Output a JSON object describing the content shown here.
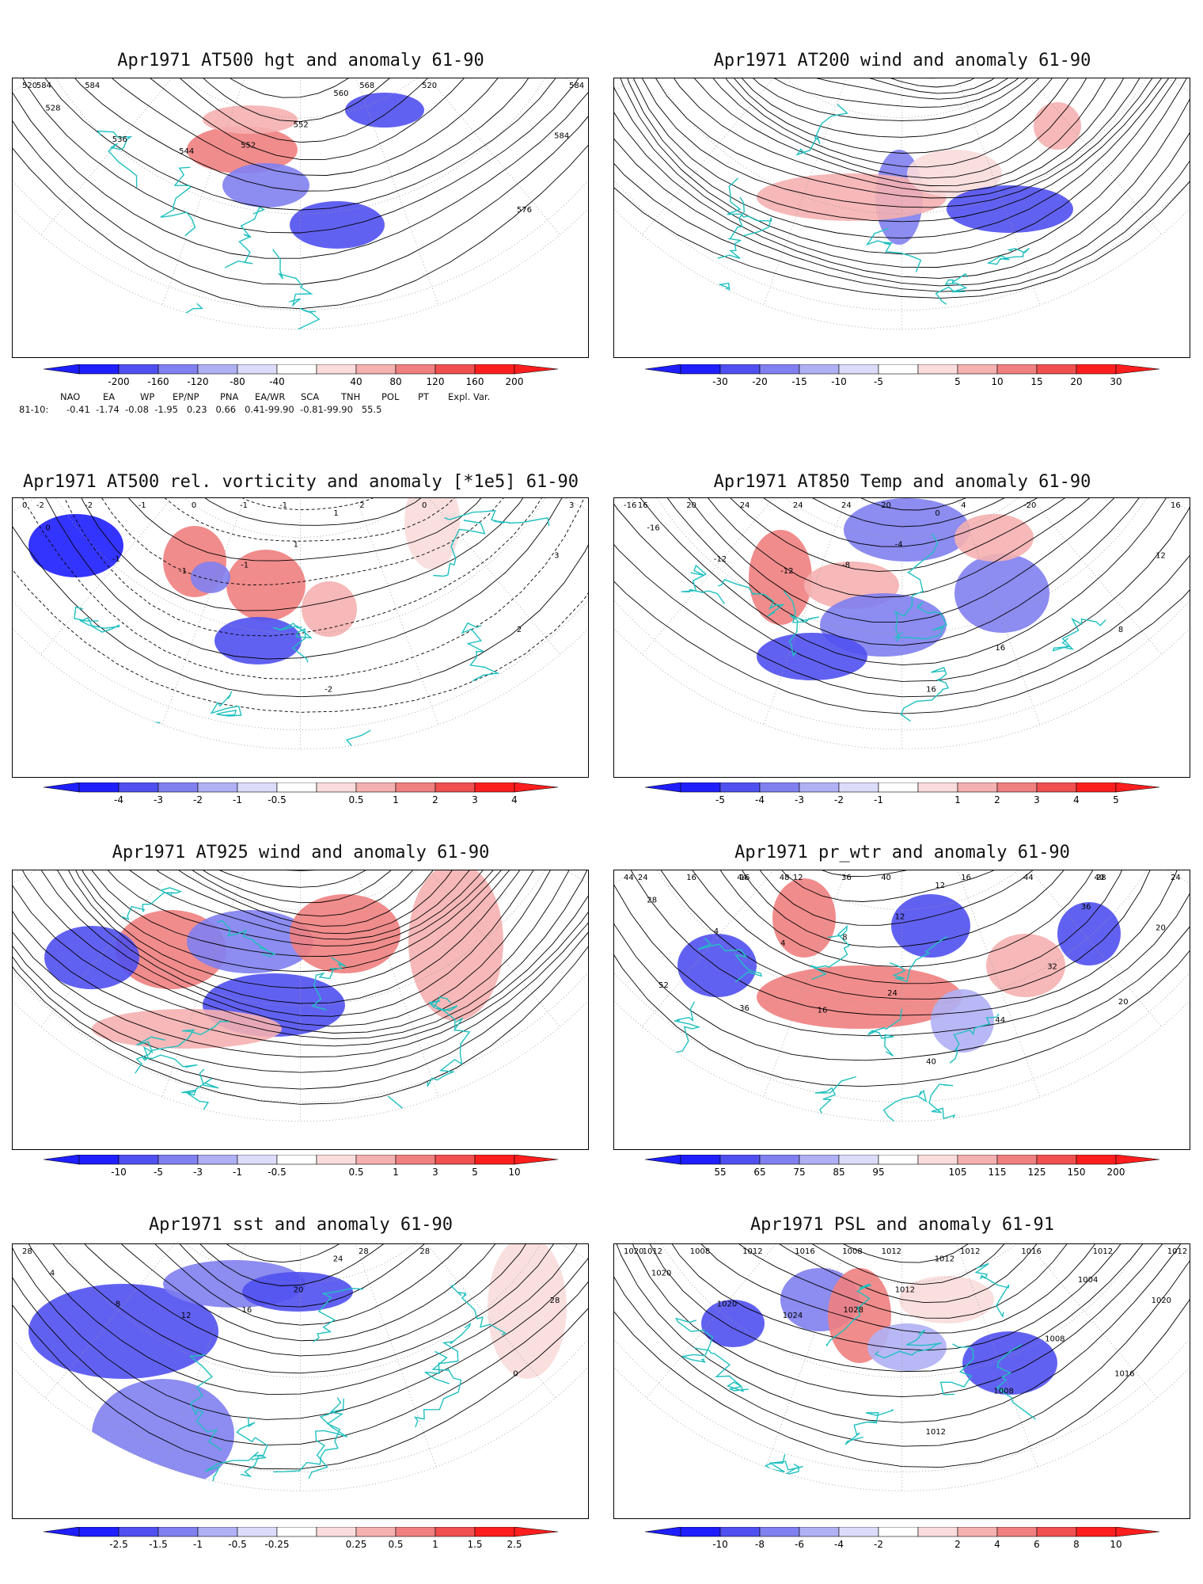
{
  "panels": [
    {
      "title": "Apr1971 AT500 hgt and anomaly 61-90",
      "colorbar": {
        "labels": [
          "-200",
          "-160",
          "-120",
          "-80",
          "-40",
          "40",
          "80",
          "120",
          "160",
          "200"
        ]
      },
      "contour_labels": [
        "520",
        "520",
        "528",
        "536",
        "544",
        "552",
        "552",
        "560",
        "568",
        "576",
        "584",
        "584",
        "584",
        "584"
      ]
    },
    {
      "title": "Apr1971 AT200 wind and anomaly 61-90",
      "colorbar": {
        "labels": [
          "-30",
          "-20",
          "-15",
          "-10",
          "-5",
          "5",
          "10",
          "15",
          "20",
          "30"
        ]
      },
      "contour_labels": []
    },
    {
      "title": "Apr1971 AT500 rel. vorticity and anomaly [*1e5] 61-90",
      "colorbar": {
        "labels": [
          "-4",
          "-3",
          "-2",
          "-1",
          "-0.5",
          "0.5",
          "1",
          "2",
          "3",
          "4"
        ]
      },
      "contour_labels": [
        "0",
        "0",
        "0",
        "-1",
        "-1",
        "-1",
        "1",
        "1",
        "2",
        "2",
        "3",
        "3",
        "-2",
        "-2",
        "-1",
        "0",
        "-1",
        "-1",
        "-2"
      ]
    },
    {
      "title": "Apr1971 AT850 Temp and anomaly 61-90",
      "colorbar": {
        "labels": [
          "-5",
          "-4",
          "-3",
          "-2",
          "-1",
          "1",
          "2",
          "3",
          "4",
          "5"
        ]
      },
      "contour_labels": [
        "-20",
        "-16",
        "-16",
        "-12",
        "-12",
        "-8",
        "-4",
        "0",
        "4",
        "8",
        "12",
        "16",
        "16",
        "20",
        "24",
        "24",
        "24",
        "20",
        "16",
        "16"
      ]
    },
    {
      "title": "Apr1971 AT925 wind and anomaly 61-90",
      "colorbar": {
        "labels": [
          "-10",
          "-5",
          "-3",
          "-1",
          "-0.5",
          "0.5",
          "1",
          "3",
          "5",
          "10"
        ]
      },
      "contour_labels": []
    },
    {
      "title": "Apr1971 pr_wtr and anomaly 61-90",
      "colorbar": {
        "labels": [
          "55",
          "65",
          "75",
          "85",
          "95",
          "105",
          "115",
          "125",
          "150",
          "200"
        ]
      },
      "contour_labels": [
        "44",
        "44",
        "28",
        "4",
        "4",
        "8",
        "12",
        "12",
        "16",
        "20",
        "20",
        "24",
        "24",
        "16",
        "16",
        "12",
        "36",
        "40",
        "40",
        "44",
        "32",
        "36",
        "28",
        "40",
        "44",
        "48",
        "52",
        "36",
        "16",
        "24"
      ]
    },
    {
      "title": "Apr1971 sst and anomaly 61-90",
      "colorbar": {
        "labels": [
          "-2.5",
          "-1.5",
          "-1",
          "-0.5",
          "-0.25",
          "0.25",
          "0.5",
          "1",
          "1.5",
          "2.5"
        ]
      },
      "contour_labels": [
        "28",
        "28",
        "4",
        "8",
        "12",
        "16",
        "20",
        "24",
        "28",
        "0",
        "28"
      ]
    },
    {
      "title": "Apr1971 PSL and anomaly 61-91",
      "colorbar": {
        "labels": [
          "-10",
          "-8",
          "-6",
          "-4",
          "-2",
          "2",
          "4",
          "6",
          "8",
          "10"
        ]
      },
      "contour_labels": [
        "1016",
        "1020",
        "1020",
        "1020",
        "1024",
        "1028",
        "1012",
        "1012",
        "1012",
        "1016",
        "1020",
        "1012",
        "1012",
        "1008",
        "1012",
        "1016",
        "1008",
        "1012",
        "1012",
        "1008",
        "1008",
        "1004",
        "1012"
      ]
    }
  ],
  "teleconnection": {
    "headers": [
      "NAO",
      "EA",
      "WP",
      "EP/NP",
      "PNA",
      "EA/WR",
      "SCA",
      "TNH",
      "POL",
      "PT",
      "Expl. Var."
    ],
    "row_label": "81-10:",
    "values": "-0.41  -1.74  -0.08  -1.95   0.23   0.66   0.41-99.90  -0.81-99.90   55.5"
  },
  "palette": {
    "blue": [
      "#1e1eff",
      "#5050f0",
      "#8080f0",
      "#b0b0f5",
      "#dcdcfa"
    ],
    "red": [
      "#fadcdc",
      "#f5b0b0",
      "#f08080",
      "#f05050",
      "#ff1e1e"
    ],
    "coast": "#20c0c0"
  }
}
